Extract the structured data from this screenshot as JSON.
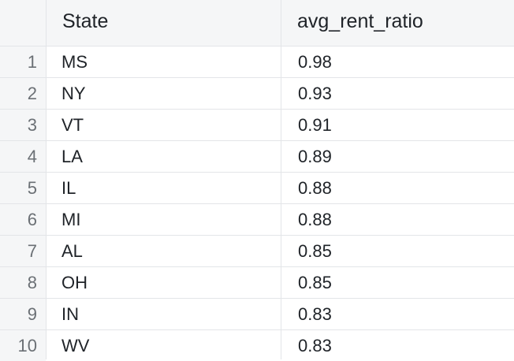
{
  "table": {
    "columns": {
      "index": "",
      "state": "State",
      "ratio": "avg_rent_ratio"
    },
    "rows": [
      {
        "index": "1",
        "state": "MS",
        "ratio": "0.98"
      },
      {
        "index": "2",
        "state": "NY",
        "ratio": "0.93"
      },
      {
        "index": "3",
        "state": "VT",
        "ratio": "0.91"
      },
      {
        "index": "4",
        "state": "LA",
        "ratio": "0.89"
      },
      {
        "index": "5",
        "state": "IL",
        "ratio": "0.88"
      },
      {
        "index": "6",
        "state": "MI",
        "ratio": "0.88"
      },
      {
        "index": "7",
        "state": "AL",
        "ratio": "0.85"
      },
      {
        "index": "8",
        "state": "OH",
        "ratio": "0.85"
      },
      {
        "index": "9",
        "state": "IN",
        "ratio": "0.83"
      },
      {
        "index": "10",
        "state": "WV",
        "ratio": "0.83"
      }
    ]
  },
  "colors": {
    "header_bg": "#f5f6f7",
    "grid_line": "#e3e5e8",
    "text": "#1f2328",
    "index_text": "#6b7075"
  }
}
